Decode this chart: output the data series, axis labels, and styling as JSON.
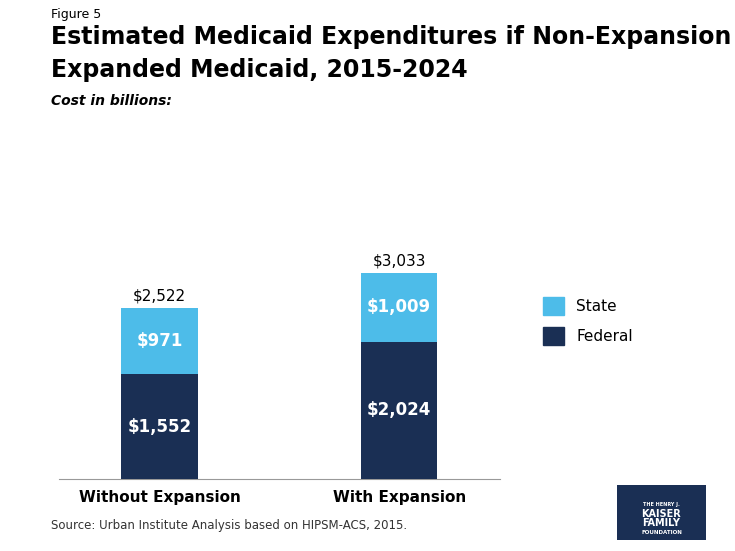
{
  "figure_label": "Figure 5",
  "title_line1": "Estimated Medicaid Expenditures if Non-Expansion States",
  "title_line2": "Expanded Medicaid, 2015-2024",
  "subtitle": "Cost in billions:",
  "categories": [
    "Without Expansion",
    "With Expansion"
  ],
  "federal_values": [
    1552,
    2024
  ],
  "state_values": [
    971,
    1009
  ],
  "totals": [
    "$2,522",
    "$3,033"
  ],
  "federal_labels": [
    "$1,552",
    "$2,024"
  ],
  "state_labels": [
    "$971",
    "$1,009"
  ],
  "federal_color": "#1a2f54",
  "state_color": "#4dbce9",
  "background_color": "#ffffff",
  "ylim": [
    0,
    3400
  ],
  "bar_width": 0.32,
  "source_text": "Source: Urban Institute Analysis based on HIPSM-ACS, 2015."
}
